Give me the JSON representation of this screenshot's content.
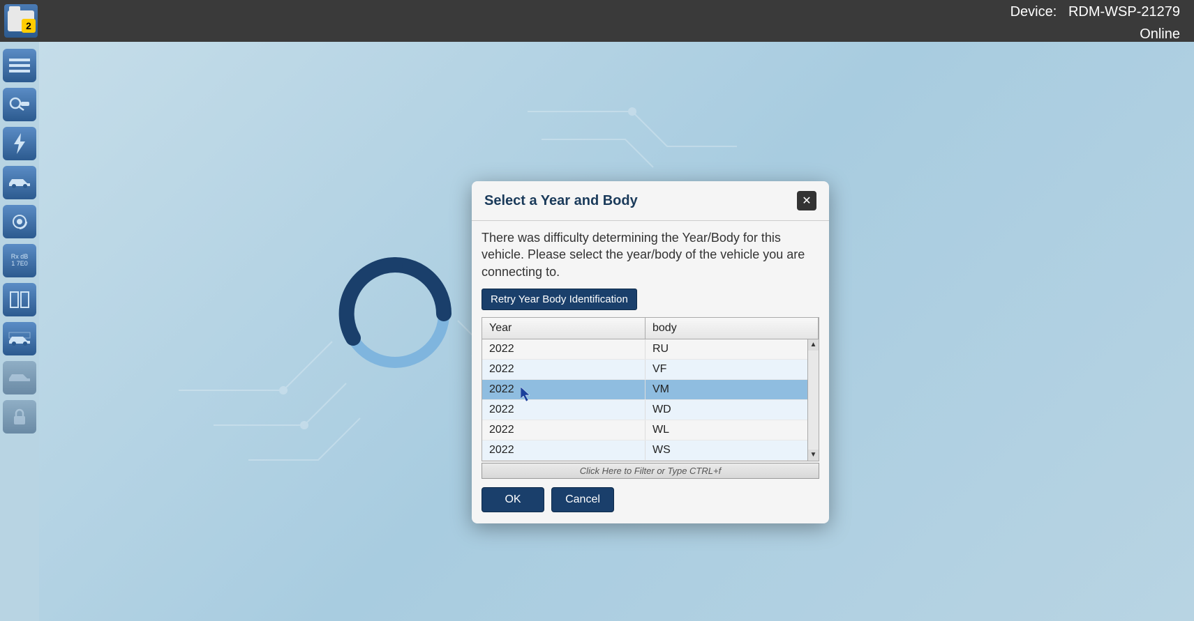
{
  "topbar": {
    "folder_count": "2",
    "device_label": "Device:",
    "device_id": "RDM-WSP-21279",
    "status": "Online"
  },
  "sidebar": {
    "items": [
      {
        "name": "menu-icon",
        "glyph": "≡"
      },
      {
        "name": "scan-icon",
        "glyph": "⚙"
      },
      {
        "name": "flash-icon",
        "glyph": "⚡"
      },
      {
        "name": "vehicle-icon",
        "glyph": "🚗"
      },
      {
        "name": "radar-icon",
        "glyph": "◎"
      },
      {
        "name": "data-icon",
        "text": "Rx dB\n1 7E0"
      },
      {
        "name": "layout-icon",
        "glyph": "▯▯"
      },
      {
        "name": "vehicle2-icon",
        "glyph": "🚙"
      },
      {
        "name": "vehicle3-icon",
        "glyph": "🚐",
        "disabled": true
      },
      {
        "name": "lock-icon",
        "glyph": "🔒",
        "disabled": true
      }
    ]
  },
  "dialog": {
    "title": "Select a Year and Body",
    "message": "There was difficulty determining the Year/Body for this vehicle. Please select the year/body of the vehicle you are connecting to.",
    "retry_label": "Retry Year Body Identification",
    "columns": {
      "year": "Year",
      "body": "body"
    },
    "rows": [
      {
        "year": "2022",
        "body": "RU"
      },
      {
        "year": "2022",
        "body": "VF"
      },
      {
        "year": "2022",
        "body": "VM"
      },
      {
        "year": "2022",
        "body": "WD"
      },
      {
        "year": "2022",
        "body": "WL"
      },
      {
        "year": "2022",
        "body": "WS"
      }
    ],
    "selected_index": 2,
    "filter_placeholder": "Click Here to Filter or Type CTRL+f",
    "ok_label": "OK",
    "cancel_label": "Cancel"
  },
  "colors": {
    "accent": "#1a3f6b",
    "row_alt": "#eaf3fb",
    "row_selected": "#8fbde0",
    "bg": "#b8d4e3"
  }
}
